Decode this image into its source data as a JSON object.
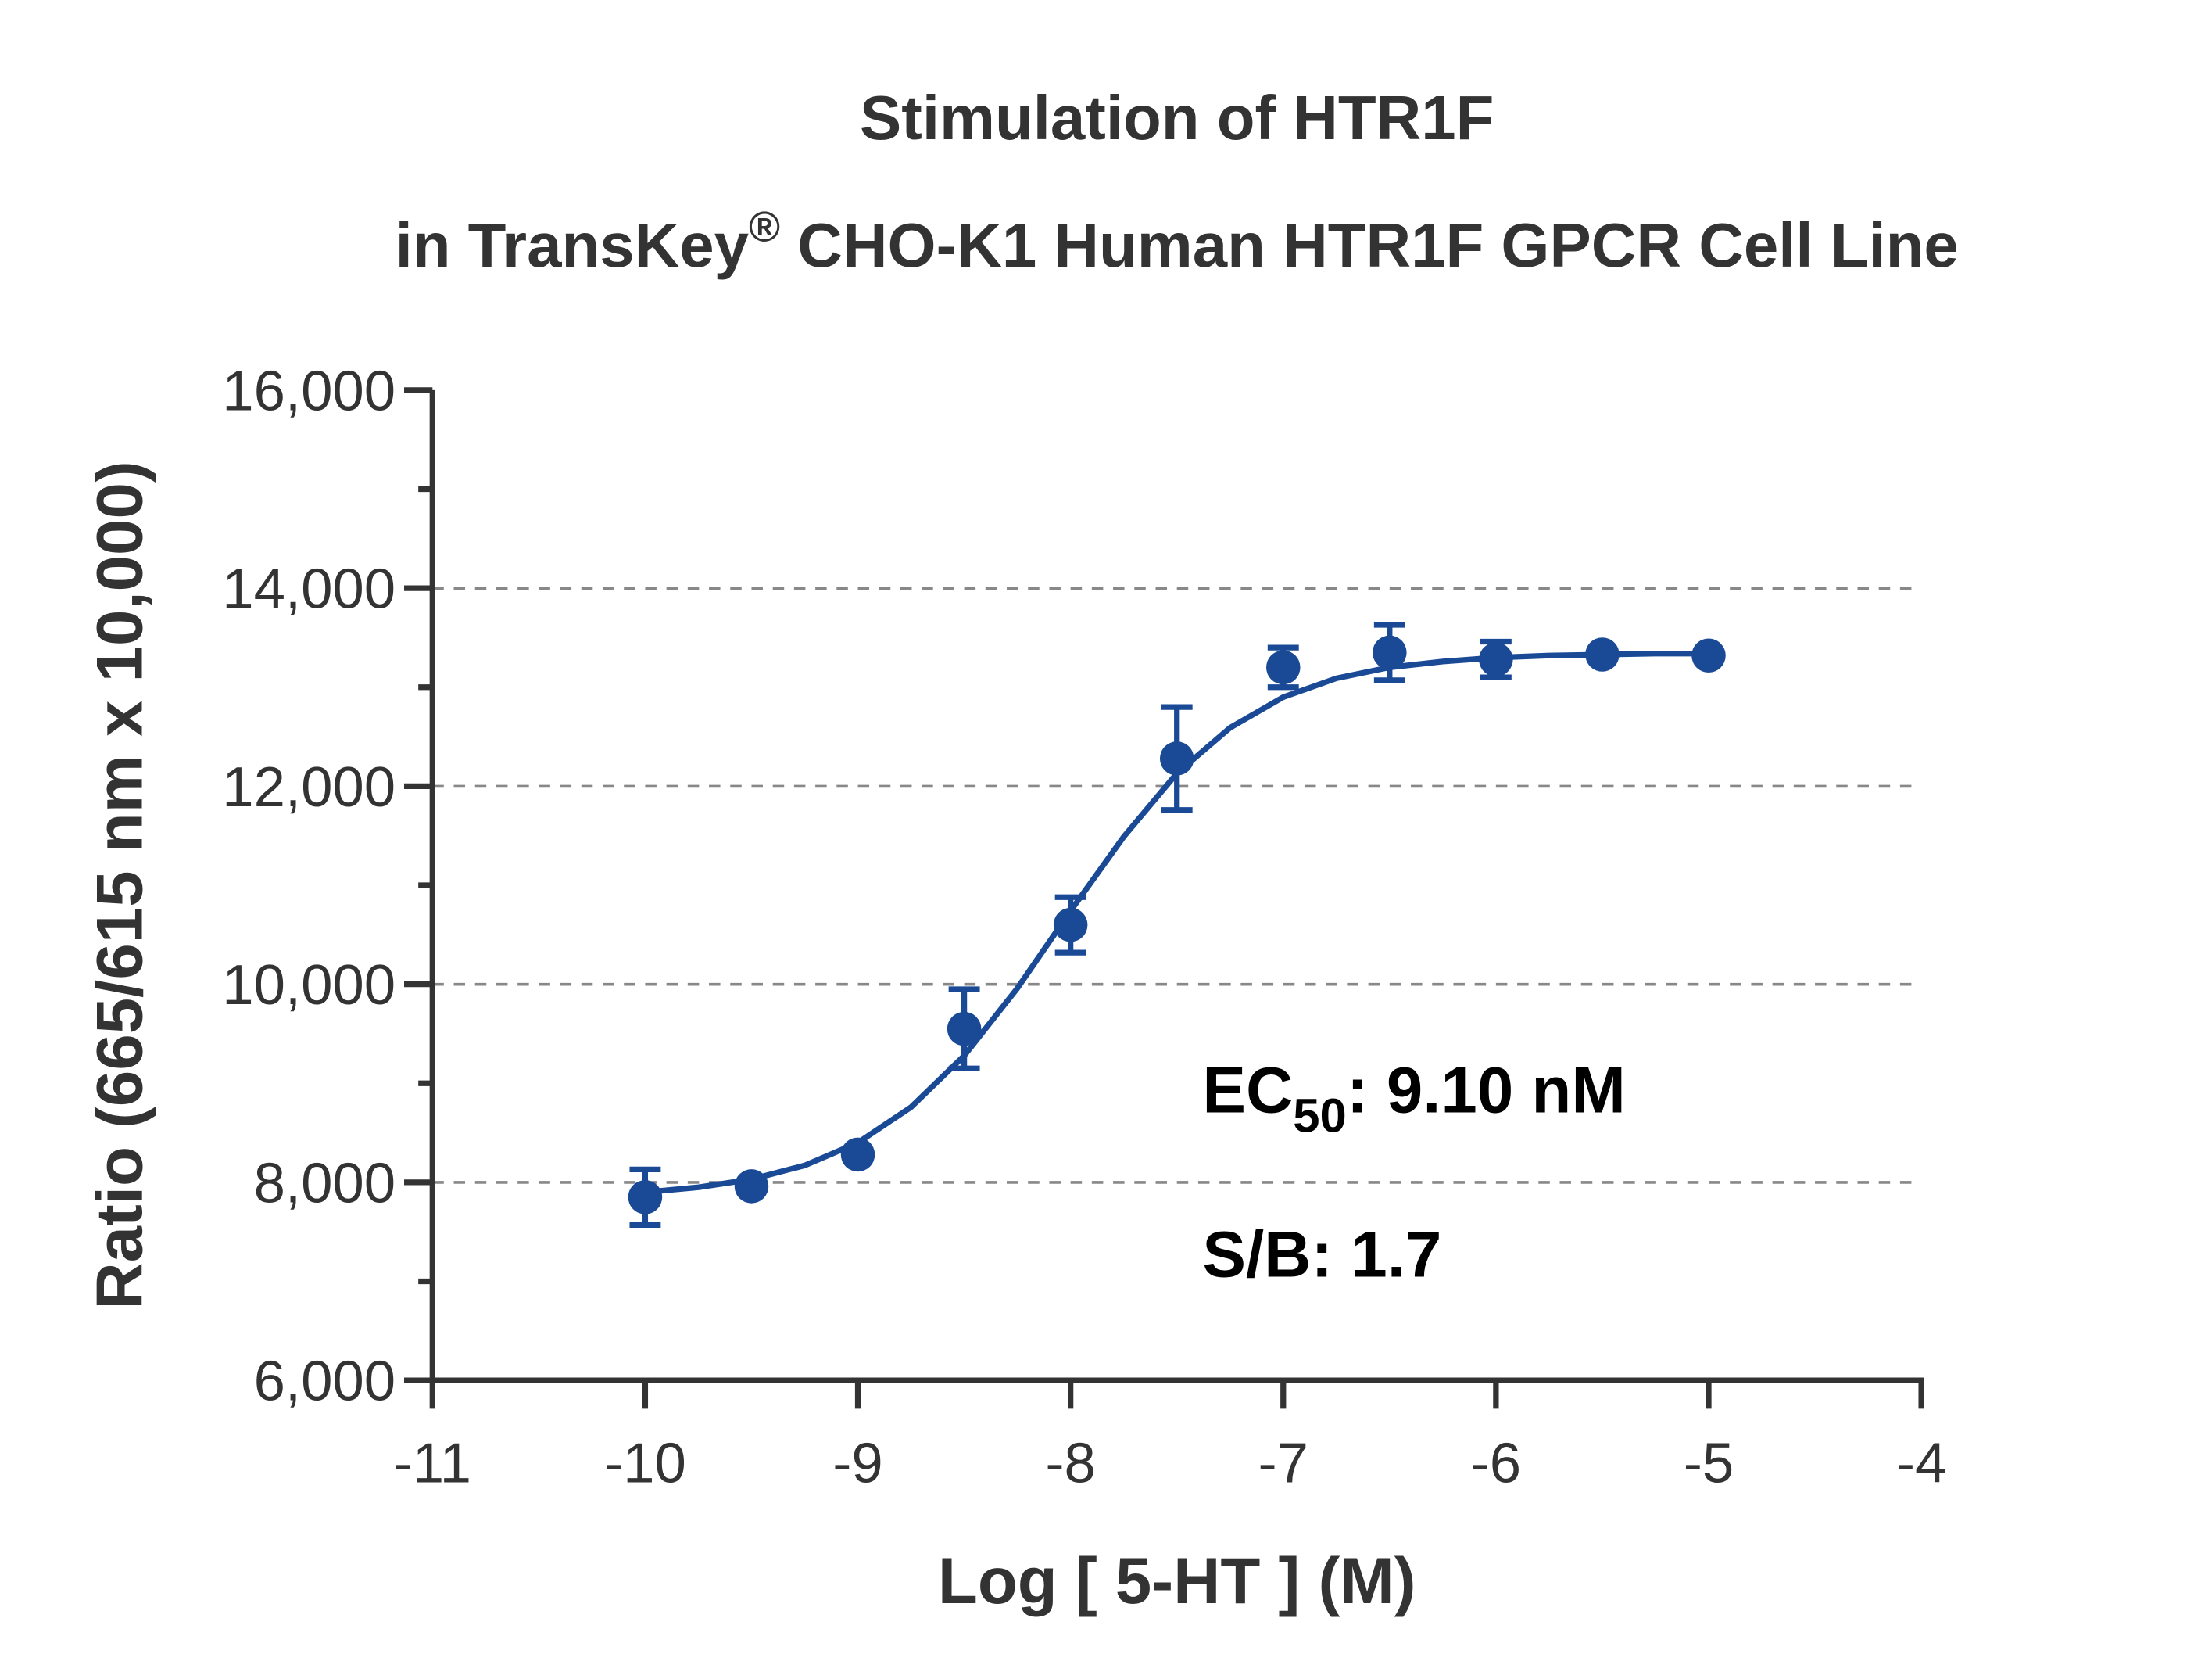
{
  "chart_data": {
    "type": "scatter",
    "title": "Stimulation of  HTR1F",
    "subtitle": [
      "in TransKey",
      "®",
      " CHO-K1 Human HTR1F GPCR Cell Line"
    ],
    "x_label": "Log [ 5-HT ]  (M)",
    "y_label": "Ratio (665/615 nm x 10,000)",
    "annotations": [
      [
        "EC",
        "50",
        ": 9.10 nM"
      ],
      "S/B: 1.7"
    ],
    "color": "#1a4a96",
    "x": [
      -10,
      -9.5,
      -9,
      -8.5,
      -8,
      -7.5,
      -7,
      -6.5,
      -6,
      -5.5,
      -5
    ],
    "values": [
      7850,
      7960,
      8280,
      9550,
      10600,
      12280,
      13200,
      13350,
      13280,
      13330,
      13320
    ],
    "errors": [
      280,
      0,
      0,
      400,
      280,
      520,
      200,
      280,
      180,
      0,
      0
    ],
    "fit": {
      "x": [
        -10,
        -9.75,
        -9.5,
        -9.25,
        -9,
        -8.75,
        -8.5,
        -8.25,
        -8,
        -7.75,
        -7.5,
        -7.25,
        -7,
        -6.75,
        -6.5,
        -6.25,
        -6,
        -5.75,
        -5.5,
        -5.25,
        -5
      ],
      "y": [
        7900,
        7950,
        8030,
        8170,
        8400,
        8760,
        9280,
        9960,
        10740,
        11490,
        12130,
        12590,
        12900,
        13090,
        13200,
        13260,
        13300,
        13320,
        13330,
        13340,
        13340
      ]
    },
    "xlim": [
      -11,
      -4
    ],
    "xticks": [
      -11,
      -10,
      -9,
      -8,
      -7,
      -6,
      -5,
      -4
    ],
    "ylim": [
      6000,
      16000
    ],
    "yticks": [
      {
        "value": 6000,
        "label": "6,000"
      },
      {
        "value": 8000,
        "label": "8,000"
      },
      {
        "value": 10000,
        "label": "10,000"
      },
      {
        "value": 12000,
        "label": "12,000"
      },
      {
        "value": 14000,
        "label": "14,000"
      },
      {
        "value": 16000,
        "label": "16,000"
      }
    ],
    "yminor_ticks": [
      7000,
      9000,
      11000,
      13000,
      15000
    ],
    "grid_lines": [
      8000,
      10000,
      12000,
      14000
    ]
  }
}
